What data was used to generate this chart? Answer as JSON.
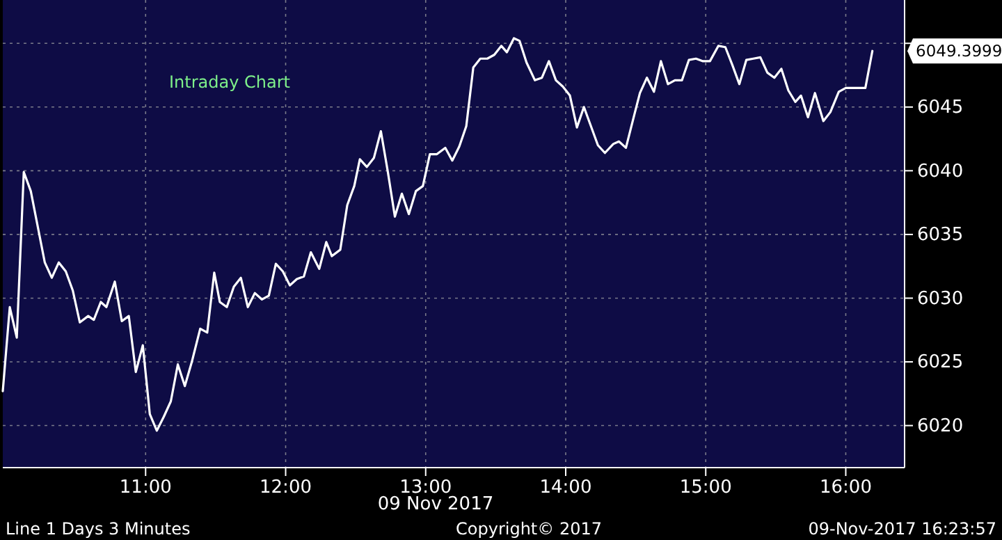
{
  "chart_data": {
    "type": "line",
    "title": "Intraday Chart",
    "xlabel": "09 Nov 2017",
    "x": [
      9.98,
      10.03,
      10.08,
      10.13,
      10.18,
      10.28,
      10.33,
      10.38,
      10.43,
      10.48,
      10.53,
      10.59,
      10.63,
      10.68,
      10.72,
      10.78,
      10.83,
      10.88,
      10.93,
      10.98,
      11.03,
      11.08,
      11.13,
      11.18,
      11.23,
      11.28,
      11.33,
      11.39,
      11.44,
      11.49,
      11.53,
      11.58,
      11.63,
      11.68,
      11.73,
      11.78,
      11.83,
      11.88,
      11.93,
      11.98,
      12.03,
      12.08,
      12.13,
      12.18,
      12.24,
      12.29,
      12.33,
      12.39,
      12.44,
      12.49,
      12.53,
      12.58,
      12.63,
      12.68,
      12.73,
      12.78,
      12.83,
      12.88,
      12.93,
      12.98,
      13.03,
      13.08,
      13.14,
      13.19,
      13.24,
      13.29,
      13.34,
      13.39,
      13.44,
      13.49,
      13.54,
      13.58,
      13.63,
      13.67,
      13.72,
      13.78,
      13.83,
      13.88,
      13.93,
      13.98,
      14.03,
      14.08,
      14.13,
      14.18,
      14.23,
      14.28,
      14.34,
      14.38,
      14.43,
      14.49,
      14.53,
      14.58,
      14.63,
      14.68,
      14.73,
      14.78,
      14.83,
      14.88,
      14.93,
      14.98,
      15.03,
      15.09,
      15.14,
      15.19,
      15.24,
      15.29,
      15.34,
      15.39,
      15.44,
      15.49,
      15.54,
      15.59,
      15.64,
      15.68,
      15.73,
      15.78,
      15.84,
      15.89,
      15.95,
      16.0,
      16.05,
      16.14,
      16.19
    ],
    "series": [
      {
        "color": "#ffffff",
        "values": [
          6022.7,
          6029.3,
          6026.9,
          6039.9,
          6038.4,
          6032.8,
          6031.6,
          6032.8,
          6032.1,
          6030.6,
          6028.1,
          6028.6,
          6028.3,
          6029.7,
          6029.3,
          6031.3,
          6028.2,
          6028.6,
          6024.2,
          6026.3,
          6020.9,
          6019.6,
          6020.7,
          6021.9,
          6024.8,
          6023.1,
          6025.0,
          6027.6,
          6027.3,
          6032.0,
          6029.7,
          6029.3,
          6030.9,
          6031.6,
          6029.3,
          6030.4,
          6029.9,
          6030.2,
          6032.7,
          6032.1,
          6031.0,
          6031.5,
          6031.7,
          6033.6,
          6032.3,
          6034.4,
          6033.3,
          6033.8,
          6037.3,
          6038.8,
          6040.9,
          6040.3,
          6041.0,
          6043.1,
          6039.9,
          6036.4,
          6038.2,
          6036.6,
          6038.4,
          6038.8,
          6041.3,
          6041.3,
          6041.8,
          6040.8,
          6041.9,
          6043.5,
          6048.1,
          6048.8,
          6048.8,
          6049.1,
          6049.8,
          6049.3,
          6050.4,
          6050.2,
          6048.5,
          6047.1,
          6047.3,
          6048.6,
          6047.1,
          6046.6,
          6045.9,
          6043.4,
          6045.0,
          6043.5,
          6042.0,
          6041.4,
          6042.1,
          6042.3,
          6041.8,
          6044.4,
          6046.1,
          6047.3,
          6046.2,
          6048.6,
          6046.8,
          6047.1,
          6047.1,
          6048.7,
          6048.8,
          6048.6,
          6048.6,
          6049.8,
          6049.7,
          6048.3,
          6046.8,
          6048.7,
          6048.8,
          6048.9,
          6047.7,
          6047.3,
          6048.0,
          6046.3,
          6045.4,
          6045.9,
          6044.2,
          6046.1,
          6043.9,
          6044.6,
          6046.2,
          6046.5,
          6046.5,
          6046.5,
          6049.4
        ]
      }
    ],
    "xlim": [
      9.98,
      16.42
    ],
    "ylim": [
      6016.7,
      6053.4
    ],
    "xticks": [
      {
        "value": 11,
        "label": "11:00"
      },
      {
        "value": 12,
        "label": "12:00"
      },
      {
        "value": 13,
        "label": "13:00"
      },
      {
        "value": 14,
        "label": "14:00"
      },
      {
        "value": 15,
        "label": "15:00"
      },
      {
        "value": 16,
        "label": "16:00"
      }
    ],
    "yticks": [
      6020,
      6025,
      6030,
      6035,
      6040,
      6045,
      {
        "value": 6050,
        "label": null
      }
    ],
    "grid": true,
    "line_style": "solid",
    "annotations": [
      "6049.3999",
      "Line 1 Days 3 Minutes",
      "Copyright© 2017",
      "09-Nov-2017 16:23:57"
    ]
  }
}
